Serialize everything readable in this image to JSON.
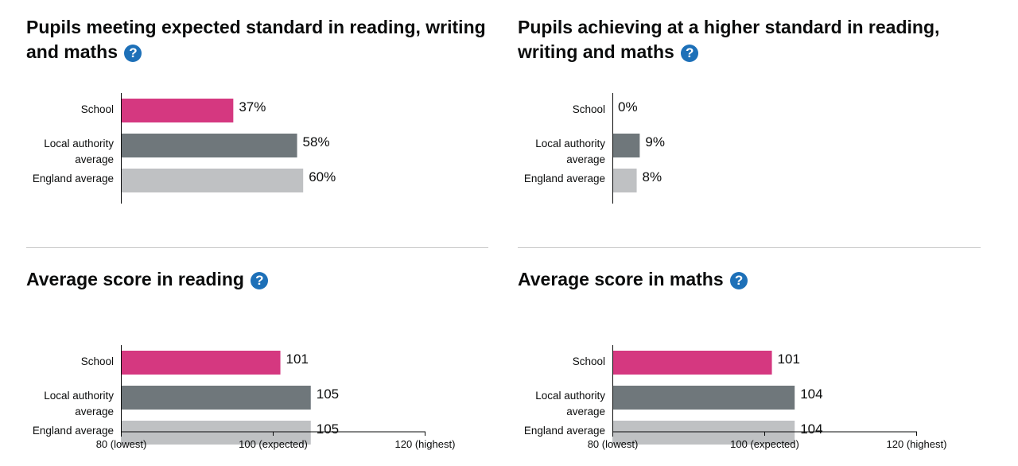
{
  "chart_data": [
    {
      "type": "bar",
      "orientation": "horizontal",
      "title": "Pupils meeting expected standard in reading, writing and maths",
      "categories": [
        "School",
        "Local authority average",
        "England average"
      ],
      "values": [
        37,
        58,
        60
      ],
      "value_labels": [
        "37%",
        "58%",
        "60%"
      ],
      "xlim": [
        0,
        100
      ],
      "ticks": [],
      "colors": [
        "#d53880",
        "#6f777b",
        "#bfc1c3"
      ],
      "help_icon": "question-mark-icon"
    },
    {
      "type": "bar",
      "orientation": "horizontal",
      "title": "Pupils achieving at a higher standard in reading, writing and maths",
      "categories": [
        "School",
        "Local authority average",
        "England average"
      ],
      "values": [
        0,
        9,
        8
      ],
      "value_labels": [
        "0%",
        "9%",
        "8%"
      ],
      "xlim": [
        0,
        100
      ],
      "ticks": [],
      "colors": [
        "#d53880",
        "#6f777b",
        "#bfc1c3"
      ],
      "help_icon": "question-mark-icon"
    },
    {
      "type": "bar",
      "orientation": "horizontal",
      "title": "Average score in reading",
      "categories": [
        "School",
        "Local authority average",
        "England average"
      ],
      "values": [
        101,
        105,
        105
      ],
      "value_labels": [
        "101",
        "105",
        "105"
      ],
      "xlim": [
        80,
        120
      ],
      "ticks": [
        {
          "value": 80,
          "label": "80 (lowest)"
        },
        {
          "value": 100,
          "label": "100 (expected)"
        },
        {
          "value": 120,
          "label": "120 (highest)"
        }
      ],
      "colors": [
        "#d53880",
        "#6f777b",
        "#bfc1c3"
      ],
      "help_icon": "question-mark-icon"
    },
    {
      "type": "bar",
      "orientation": "horizontal",
      "title": "Average score in maths",
      "categories": [
        "School",
        "Local authority average",
        "England average"
      ],
      "values": [
        101,
        104,
        104
      ],
      "value_labels": [
        "101",
        "104",
        "104"
      ],
      "xlim": [
        80,
        120
      ],
      "ticks": [
        {
          "value": 80,
          "label": "80 (lowest)"
        },
        {
          "value": 100,
          "label": "100 (expected)"
        },
        {
          "value": 120,
          "label": "120 (highest)"
        }
      ],
      "colors": [
        "#d53880",
        "#6f777b",
        "#bfc1c3"
      ],
      "help_icon": "question-mark-icon"
    }
  ]
}
